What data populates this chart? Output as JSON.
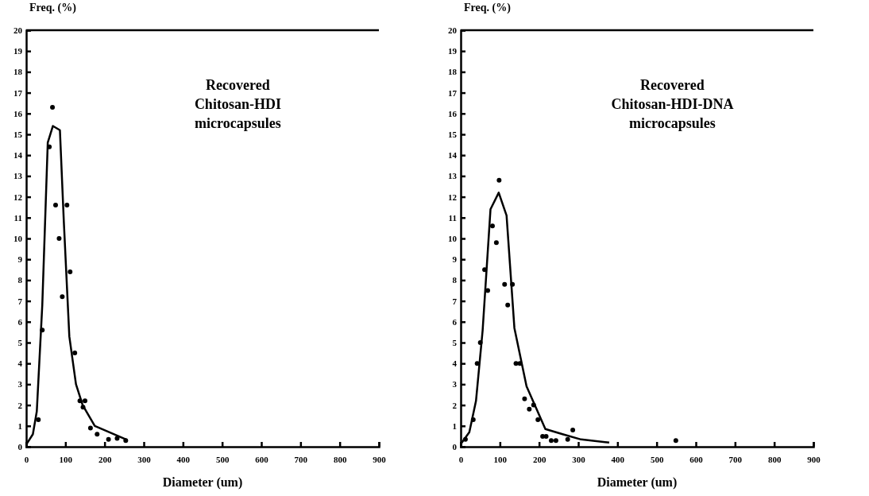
{
  "chart_data": [
    {
      "type": "scatter",
      "xlabel": "Diameter (um)",
      "ylabel": "Freq. (%)",
      "annotations": [
        "Recovered\nChitosan-HDI\nmicrocapsules"
      ],
      "xlim": [
        0,
        900
      ],
      "xticks": [
        0,
        100,
        200,
        300,
        400,
        500,
        600,
        700,
        800,
        900
      ],
      "ylim": [
        0,
        20
      ],
      "yticks": [
        0,
        1,
        2,
        3,
        4,
        5,
        6,
        7,
        8,
        9,
        10,
        11,
        12,
        13,
        14,
        15,
        16,
        17,
        18,
        19,
        20
      ],
      "grid": false,
      "series": [
        {
          "marker": "circle",
          "color": "#000000",
          "x": [
            31,
            41,
            59,
            67,
            75,
            84,
            92,
            104,
            112,
            124,
            137,
            145,
            150,
            164,
            181,
            210,
            232,
            254
          ],
          "values": [
            1.3,
            5.6,
            14.4,
            16.3,
            11.6,
            10,
            7.2,
            11.6,
            8.4,
            4.5,
            2.2,
            1.9,
            2.2,
            0.9,
            0.6,
            0.35,
            0.4,
            0.3
          ]
        },
        {
          "type": "line",
          "color": "#000000",
          "line_style": "solid",
          "x": [
            0,
            17,
            27,
            41,
            55,
            68,
            86,
            96,
            110,
            127,
            144,
            175,
            255
          ],
          "values": [
            0.1,
            0.6,
            1.7,
            6.8,
            14.6,
            15.4,
            15.2,
            10.8,
            5.3,
            3,
            2,
            1,
            0.35
          ]
        }
      ]
    },
    {
      "type": "scatter",
      "xlabel": "Diameter (um)",
      "ylabel": "Freq. (%)",
      "annotations": [
        "Recovered\nChitosan-HDI-DNA\nmicrocapsules"
      ],
      "xlim": [
        0,
        900
      ],
      "xticks": [
        0,
        100,
        200,
        300,
        400,
        500,
        600,
        700,
        800,
        900
      ],
      "ylim": [
        0,
        20
      ],
      "yticks": [
        0,
        1,
        2,
        3,
        4,
        5,
        6,
        7,
        8,
        9,
        10,
        11,
        12,
        13,
        14,
        15,
        16,
        17,
        18,
        19,
        20
      ],
      "grid": false,
      "series": [
        {
          "marker": "circle",
          "color": "#000000",
          "x": [
            12,
            32,
            42,
            50,
            61,
            69,
            81,
            91,
            98,
            112,
            120,
            132,
            141,
            151,
            163,
            175,
            186,
            197,
            209,
            218,
            231,
            243,
            273,
            286,
            549
          ],
          "values": [
            0.35,
            1.3,
            4,
            5,
            8.5,
            7.5,
            10.6,
            9.8,
            12.8,
            7.8,
            6.8,
            7.8,
            4,
            4,
            2.3,
            1.8,
            2,
            1.3,
            0.5,
            0.5,
            0.3,
            0.3,
            0.35,
            0.8,
            0.3
          ]
        },
        {
          "type": "line",
          "color": "#000000",
          "line_style": "solid",
          "x": [
            1,
            22,
            39,
            56,
            76,
            97,
            117,
            137,
            168,
            216,
            260,
            307,
            379
          ],
          "values": [
            0.15,
            0.7,
            2.2,
            5.6,
            11.4,
            12.2,
            11.1,
            5.7,
            2.9,
            0.85,
            0.6,
            0.35,
            0.2
          ]
        }
      ]
    }
  ]
}
